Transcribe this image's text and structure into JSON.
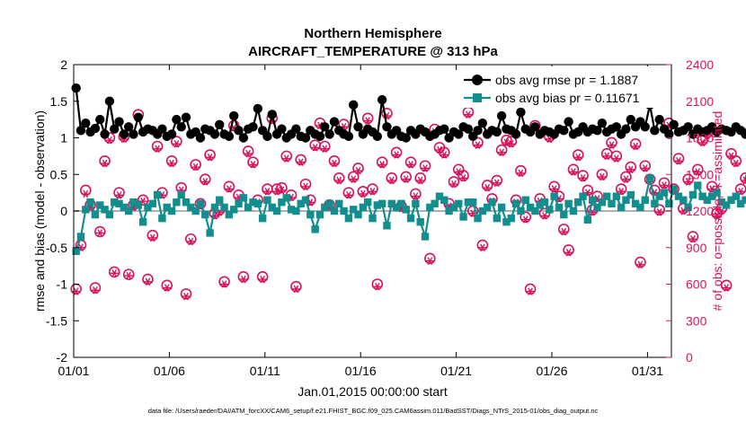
{
  "chart_data": {
    "type": "line",
    "title": "Northern Hemisphere",
    "subtitle": "AIRCRAFT_TEMPERATURE @ 313 hPa",
    "xlabel": "Jan.01,2015 00:00:00 start",
    "ylabel": "rmse and bias (model - observation)",
    "ylabel_right": "# of obs: o=possible; ∗=assimilated",
    "footnote": "data file: /Users/raeder/DAI/ATM_forcXX/CAM6_setup/f.e21.FHIST_BGC.f09_025.CAM6assim.011/BadSST/Diags_NTrS_2015-01/obs_diag_output.nc",
    "xlim": [
      0,
      31.25
    ],
    "ylim": [
      -2,
      2
    ],
    "ylim_right": [
      0,
      2400
    ],
    "x_tick_positions": [
      0,
      5,
      10,
      15,
      20,
      25,
      30
    ],
    "x_tick_labels": [
      "01/01",
      "01/06",
      "01/11",
      "01/16",
      "01/21",
      "01/26",
      "01/31"
    ],
    "y_ticks": [
      -2,
      -1.5,
      -1,
      -0.5,
      0,
      0.5,
      1,
      1.5,
      2
    ],
    "y_tick_labels": [
      "-2",
      "-1.5",
      "-1",
      "-0.5",
      "0",
      "0.5",
      "1",
      "1.5",
      "2"
    ],
    "y_ticks_right": [
      0,
      300,
      600,
      900,
      1200,
      1500,
      1800,
      2100,
      2400
    ],
    "grid": false,
    "legend_position": "top-right",
    "colors": {
      "rmse": "#000000",
      "bias": "#138e8e",
      "obs": "#d6135d",
      "zero_line": "#b0b0b0"
    },
    "series": [
      {
        "name": "obs avg rmse pr = 1.1887",
        "axis": "left",
        "values": [
          1.68,
          1.1,
          1.2,
          1.08,
          1.13,
          1.25,
          1.05,
          1.5,
          1.12,
          1.22,
          1.05,
          1.15,
          1.05,
          1.28,
          1.08,
          1.12,
          1.1,
          1.05,
          1.12,
          1.02,
          1.05,
          1.25,
          1.15,
          1.28,
          1.05,
          1.08,
          1.0,
          1.12,
          1.1,
          1.05,
          1.18,
          1.05,
          1.02,
          1.3,
          1.1,
          1.0,
          1.12,
          1.15,
          1.4,
          1.1,
          1.02,
          1.32,
          1.05,
          1.12,
          1.0,
          1.05,
          1.12,
          1.02,
          1.0,
          1.1,
          1.05,
          1.02,
          1.15,
          1.05,
          1.22,
          1.1,
          1.05,
          1.02,
          1.45,
          1.15,
          1.05,
          1.12,
          1.08,
          1.02,
          1.52,
          1.15,
          1.05,
          1.1,
          1.02,
          1.0,
          1.1,
          1.05,
          1.12,
          1.08,
          1.02,
          1.05,
          1.1,
          1.12,
          1.0,
          1.08,
          1.05,
          1.15,
          1.12,
          1.02,
          1.1,
          1.2,
          1.05,
          1.1,
          1.08,
          1.3,
          1.12,
          1.1,
          1.05,
          1.35,
          1.12,
          1.08,
          1.15,
          1.05,
          1.1,
          1.08,
          1.05,
          1.12,
          1.1,
          1.22,
          1.05,
          1.08,
          1.15,
          1.08,
          1.12,
          1.1,
          1.2,
          1.08,
          1.12,
          1.15,
          1.05,
          1.12,
          1.25,
          1.15,
          1.22,
          1.15,
          1.45,
          1.1,
          1.25,
          1.12,
          1.05,
          1.18,
          1.08,
          1.1,
          1.15,
          1.05,
          1.12,
          1.08,
          1.1,
          1.15,
          1.08,
          1.12,
          1.1,
          1.08,
          1.15,
          1.1,
          1.05,
          1.12,
          1.08,
          1.1,
          1.12,
          1.05,
          1.15,
          1.1,
          1.12,
          1.22,
          1.1,
          1.08,
          1.12,
          1.15,
          1.05,
          1.12,
          1.08,
          1.1,
          1.05,
          1.12,
          1.1,
          1.08,
          1.12,
          1.05,
          1.2,
          1.1,
          1.08,
          1.12,
          1.05,
          1.15,
          1.1,
          1.05,
          1.12,
          1.08,
          1.15,
          1.05,
          1.1,
          1.12,
          1.08,
          1.02,
          1.05,
          1.1,
          1.15,
          1.12,
          1.08,
          1.1,
          1.12,
          1.05,
          1.15,
          1.1,
          1.08,
          1.12,
          1.05,
          1.1,
          1.3,
          1.15,
          1.1,
          1.2,
          1.12,
          1.25,
          1.12,
          1.15,
          1.45,
          1.35,
          1.2,
          1.3,
          1.38,
          1.25,
          1.32,
          1.28,
          1.25,
          1.38,
          1.45,
          1.25,
          1.32,
          1.35
        ]
      },
      {
        "name": "obs avg bias pr = 0.11671",
        "axis": "left",
        "values": [
          -0.55,
          -0.35,
          0.02,
          0.12,
          -0.05,
          0.08,
          0.02,
          -0.05,
          0.12,
          0.1,
          0.05,
          0.0,
          0.12,
          0.08,
          -0.15,
          0.05,
          0.1,
          0.22,
          -0.1,
          0.05,
          0.0,
          0.12,
          0.22,
          0.12,
          0.05,
          0.0,
          0.1,
          -0.05,
          -0.3,
          0.05,
          0.15,
          0.05,
          -0.05,
          0.02,
          0.1,
          0.18,
          0.05,
          0.12,
          0.1,
          -0.1,
          0.15,
          0.05,
          0.0,
          0.12,
          0.18,
          0.02,
          0.0,
          0.1,
          0.15,
          -0.05,
          -0.25,
          -0.05,
          0.05,
          0.1,
          0.0,
          0.1,
          0.0,
          -0.1,
          0.02,
          -0.05,
          0.05,
          0.12,
          -0.1,
          0.08,
          0.1,
          -0.2,
          0.1,
          0.05,
          0.1,
          0.02,
          -0.1,
          0.1,
          -0.15,
          -0.35,
          0.05,
          0.1,
          0.2,
          0.15,
          0.0,
          0.05,
          0.1,
          -0.08,
          0.12,
          0.12,
          -0.1,
          0.0,
          0.05,
          0.12,
          -0.1,
          0.05,
          -0.15,
          -0.1,
          0.1,
          0.0,
          0.15,
          0.05,
          0.0,
          0.08,
          0.12,
          0.02,
          0.2,
          0.05,
          -0.05,
          0.1,
          0.0,
          0.12,
          0.2,
          -0.12,
          0.15,
          0.05,
          0.12,
          0.2,
          0.1,
          0.2,
          0.05,
          0.15,
          0.22,
          0.1,
          0.05,
          0.15,
          0.45,
          0.1,
          0.2,
          0.25,
          0.1,
          0.3,
          0.2,
          0.15,
          0.05,
          0.22,
          0.35,
          0.2,
          0.15,
          0.2,
          0.25,
          0.12,
          0.08,
          0.15,
          0.2,
          0.1,
          0.15,
          0.2,
          0.1,
          0.25,
          0.18,
          0.12,
          0.05,
          0.15,
          0.3,
          0.1,
          0.15,
          0.05,
          0.2,
          0.08,
          0.15,
          0.18,
          0.12,
          0.05,
          0.15,
          0.1,
          0.2,
          0.12,
          -0.05,
          -0.3,
          0.0,
          0.12,
          0.2,
          0.1,
          0.05,
          0.18,
          0.25,
          0.1,
          0.05,
          0.2,
          0.3,
          0.1,
          0.05,
          0.15,
          0.2,
          0.25,
          0.1,
          0.15,
          0.2,
          0.05,
          0.18,
          0.1,
          0.25,
          0.18,
          0.1,
          0.15,
          0.05,
          -0.1,
          0.1,
          0.25,
          0.15,
          0.2,
          0.35,
          0.28,
          0.4,
          0.45,
          0.48,
          0.35,
          0.52,
          0.45,
          0.4,
          0.55,
          0.35,
          0.45,
          0.38,
          0.5,
          0.42,
          0.48,
          0.38,
          0.55,
          0.45,
          0.4,
          0.55,
          0.5,
          0.45,
          0.5
        ]
      },
      {
        "name": "# of obs possible",
        "axis": "right",
        "marker": "circle",
        "values": [
          560,
          920,
          1370,
          1250,
          570,
          1030,
          1610,
          1800,
          700,
          1350,
          1810,
          680,
          1250,
          1990,
          1290,
          640,
          1000,
          1730,
          1350,
          590,
          1610,
          1770,
          1390,
          520,
          970,
          1580,
          1260,
          1460,
          1660,
          1180,
          1210,
          620,
          1400,
          1900,
          1330,
          660,
          1690,
          1600,
          1290,
          660,
          1380,
          1960,
          1380,
          1390,
          1650,
          1330,
          580,
          1620,
          1420,
          1290,
          1740,
          1920,
          1730,
          1250,
          1610,
          1470,
          1910,
          1350,
          1480,
          1550,
          1360,
          1960,
          1380,
          600,
          1600,
          2000,
          1470,
          1680,
          1240,
          1480,
          1600,
          1340,
          1470,
          1570,
          810,
          1870,
          1720,
          1680,
          1260,
          1440,
          1540,
          1490,
          2010,
          1200,
          1760,
          920,
          1410,
          1300,
          1450,
          1700,
          1780,
          1770,
          1290,
          1530,
          1150,
          560,
          1900,
          1300,
          1180,
          1810,
          1400,
          1320,
          1050,
          880,
          1540,
          1660,
          1490,
          1370,
          1210,
          1320,
          1500,
          1670,
          1760,
          1650,
          1380,
          1480,
          1560,
          1750,
          780,
          1570,
          1460,
          1370,
          1210,
          1430,
          1920,
          1380,
          1630,
          1220,
          1460,
          990,
          1540,
          1780,
          1840,
          1400,
          1180,
          1220,
          590,
          1670,
          1610,
          1380,
          1470,
          1470,
          1380,
          640,
          1360,
          1420,
          1770,
          1560,
          1700,
          1380,
          1540,
          1450,
          1880,
          1220,
          1150,
          1090,
          700,
          1270,
          1840,
          1900,
          1360,
          1520,
          1380,
          1420,
          1640,
          1200,
          1410,
          1290,
          1480,
          1920,
          1210,
          1390,
          1380,
          1320,
          1210,
          1350,
          1240,
          760,
          1250,
          1500,
          1440,
          1420,
          1510,
          1630,
          1910,
          1420,
          1440,
          1500,
          1600,
          1410,
          1520,
          1480,
          1380,
          1230,
          1510,
          1420,
          1320,
          1630,
          1820,
          790,
          1370,
          1570,
          1460,
          1490,
          1420,
          1980,
          1460,
          1600,
          1510,
          1350,
          1660,
          1430,
          1440,
          1510,
          1550,
          1430,
          1590,
          1360,
          1840,
          1460,
          1010,
          0,
          1500
        ]
      },
      {
        "name": "# of obs assimilated",
        "axis": "right",
        "marker": "asterisk",
        "values": [
          540,
          900,
          1340,
          1230,
          550,
          1020,
          1590,
          1780,
          690,
          1330,
          1790,
          670,
          1230,
          1970,
          1280,
          620,
          980,
          1710,
          1330,
          570,
          1590,
          1750,
          1370,
          500,
          950,
          1560,
          1240,
          1440,
          1640,
          1160,
          1190,
          600,
          1380,
          1880,
          1310,
          640,
          1670,
          1580,
          1270,
          640,
          1360,
          1940,
          1360,
          1370,
          1630,
          1310,
          560,
          1600,
          1400,
          1270,
          1720,
          1900,
          1710,
          1230,
          1590,
          1450,
          1890,
          1330,
          1460,
          1530,
          1340,
          1940,
          1360,
          580,
          1580,
          1980,
          1450,
          1660,
          1220,
          1460,
          1580,
          1320,
          1450,
          1550,
          790,
          1850,
          1700,
          1660,
          1240,
          1420,
          1520,
          1470,
          1990,
          1180,
          1740,
          900,
          1390,
          1280,
          1430,
          1680,
          1760,
          1750,
          1270,
          1510,
          1130,
          540,
          1880,
          1280,
          1160,
          1790,
          1380,
          1300,
          1030,
          860,
          1520,
          1640,
          1470,
          1350,
          1190,
          1300,
          1480,
          1650,
          1740,
          1630,
          1360,
          1460,
          1540,
          1730,
          760,
          1550,
          1440,
          1350,
          1190,
          1410,
          1900,
          1360,
          1610,
          1200,
          1440,
          970,
          1520,
          1760,
          1820,
          1380,
          1160,
          1200,
          570,
          1650,
          1590,
          1360,
          1450,
          1450,
          1360,
          620,
          1340,
          1400,
          1750,
          1540,
          1680,
          1360,
          1520,
          1430,
          1860,
          1200,
          1130,
          1070,
          680,
          1250,
          1820,
          1880,
          1340,
          1500,
          1360,
          1400,
          1620,
          1180,
          1390,
          1270,
          1460,
          1900,
          1190,
          1370,
          1360,
          1300,
          1190,
          1330,
          1220,
          740,
          1230,
          1480,
          1420,
          1400,
          1490,
          1610,
          1890,
          1400,
          1420,
          1480,
          1580,
          1390,
          1500,
          1460,
          1360,
          1210,
          1490,
          1400,
          1300,
          1610,
          1800,
          770,
          1350,
          1550,
          1440,
          1470,
          1400,
          1960,
          1440,
          1580,
          1490,
          1330,
          1640,
          1410,
          1420,
          1490,
          1530,
          1410,
          1570,
          1340,
          1820,
          1440,
          990,
          0,
          1480
        ]
      }
    ]
  }
}
